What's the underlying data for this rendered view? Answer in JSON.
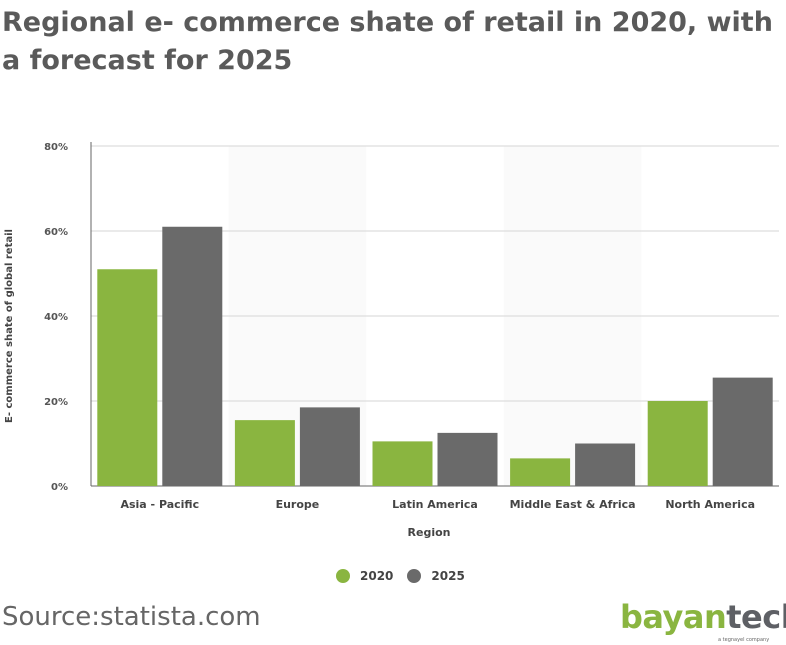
{
  "title": "Regional e- commerce shate of retail in 2020, with a forecast for 2025",
  "source": "Source:statista.com",
  "logo": {
    "part1": "bayan",
    "part2": "tech",
    "tagline": "a tegnayel company"
  },
  "chart_data": {
    "type": "bar",
    "title": "Regional e- commerce shate of retail in 2020, with a forecast for 2025",
    "xlabel": "Region",
    "ylabel": "E- commerce shate of global retail",
    "categories": [
      "Asia - Pacific",
      "Europe",
      "Latin America",
      "Middle East & Africa",
      "North America"
    ],
    "series": [
      {
        "name": "2020",
        "color": "#8ab540",
        "values": [
          51,
          15.5,
          10.5,
          6.5,
          20
        ]
      },
      {
        "name": "2025",
        "color": "#6a6a6a",
        "values": [
          61,
          18.5,
          12.5,
          10,
          25.5
        ]
      }
    ],
    "yticks": [
      0,
      20,
      40,
      60,
      80
    ],
    "ytick_labels": [
      "0%",
      "20%",
      "40%",
      "60%",
      "80%"
    ],
    "ylim": [
      0,
      80
    ],
    "grid": true,
    "legend": "bottom-center"
  }
}
